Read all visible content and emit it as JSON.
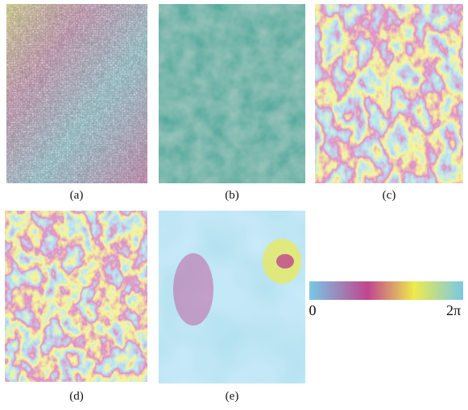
{
  "panels": [
    {
      "label": "(a)"
    },
    {
      "label": "(b)"
    },
    {
      "label": "(c)"
    },
    {
      "label": "(d)"
    },
    {
      "label": "(e)"
    }
  ],
  "colorbar": {
    "min": "0",
    "max": "2π"
  }
}
